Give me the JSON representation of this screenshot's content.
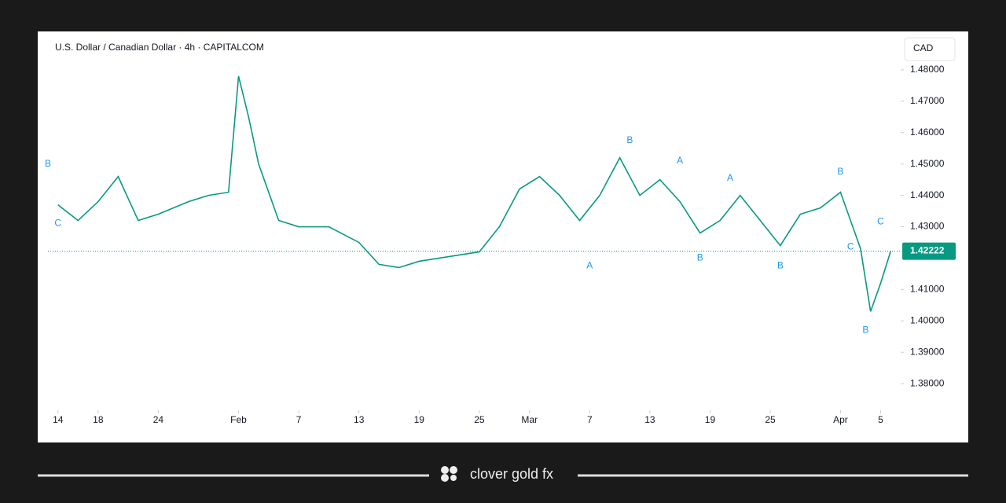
{
  "chart_data": {
    "type": "line",
    "title": "U.S. Dollar / Canadian Dollar · 4h · CAPITALCOM",
    "currency": "CAD",
    "brand": "clover gold fx",
    "xlim": [
      -1,
      84
    ],
    "xticks": [
      {
        "value": 0,
        "label": "14"
      },
      {
        "value": 4,
        "label": "18"
      },
      {
        "value": 10,
        "label": "24"
      },
      {
        "value": 18,
        "label": "Feb"
      },
      {
        "value": 24,
        "label": "7"
      },
      {
        "value": 30,
        "label": "13"
      },
      {
        "value": 36,
        "label": "19"
      },
      {
        "value": 42,
        "label": "25"
      },
      {
        "value": 47,
        "label": "Mar"
      },
      {
        "value": 53,
        "label": "7"
      },
      {
        "value": 59,
        "label": "13"
      },
      {
        "value": 65,
        "label": "19"
      },
      {
        "value": 71,
        "label": "25"
      },
      {
        "value": 78,
        "label": "Apr"
      },
      {
        "value": 82,
        "label": "5"
      }
    ],
    "ylim": [
      1.365,
      1.491
    ],
    "yticks": [
      {
        "value": 1.48,
        "label": "1.48000"
      },
      {
        "value": 1.47,
        "label": "1.47000"
      },
      {
        "value": 1.46,
        "label": "1.46000"
      },
      {
        "value": 1.45,
        "label": "1.45000"
      },
      {
        "value": 1.44,
        "label": "1.44000"
      },
      {
        "value": 1.43,
        "label": "1.43000"
      },
      {
        "value": 1.41,
        "label": "1.41000"
      },
      {
        "value": 1.4,
        "label": "1.40000"
      },
      {
        "value": 1.39,
        "label": "1.39000"
      },
      {
        "value": 1.38,
        "label": "1.38000"
      }
    ],
    "current_price": 1.42222,
    "grid": false,
    "series": [
      {
        "name": "USDCAD",
        "color": "#089981",
        "x": [
          0,
          2,
          4,
          6,
          8,
          10,
          13,
          15,
          17,
          18,
          19,
          20,
          22,
          24,
          27,
          30,
          32,
          34,
          36,
          38,
          40,
          42,
          44,
          46,
          48,
          50,
          52,
          54,
          56,
          58,
          60,
          62,
          64,
          66,
          68,
          70,
          72,
          74,
          76,
          78,
          79,
          80,
          81,
          82,
          83
        ],
        "values": [
          1.437,
          1.432,
          1.438,
          1.446,
          1.432,
          1.434,
          1.438,
          1.44,
          1.441,
          1.478,
          1.465,
          1.45,
          1.432,
          1.43,
          1.43,
          1.425,
          1.418,
          1.417,
          1.419,
          1.42,
          1.421,
          1.422,
          1.43,
          1.442,
          1.446,
          1.44,
          1.432,
          1.44,
          1.452,
          1.44,
          1.445,
          1.438,
          1.428,
          1.432,
          1.44,
          1.432,
          1.424,
          1.434,
          1.436,
          1.441,
          1.432,
          1.423,
          1.403,
          1.412,
          1.42222
        ]
      }
    ],
    "annotations": [
      {
        "text": "B",
        "x": -1,
        "y": 1.45
      },
      {
        "text": "C",
        "x": 0,
        "y": 1.431
      },
      {
        "text": "A",
        "x": 53,
        "y": 1.4175
      },
      {
        "text": "B",
        "x": 57,
        "y": 1.4575
      },
      {
        "text": "A",
        "x": 62,
        "y": 1.451
      },
      {
        "text": "B",
        "x": 64,
        "y": 1.42
      },
      {
        "text": "A",
        "x": 67,
        "y": 1.4455
      },
      {
        "text": "B",
        "x": 72,
        "y": 1.4175
      },
      {
        "text": "B",
        "x": 78,
        "y": 1.4475
      },
      {
        "text": "C",
        "x": 79,
        "y": 1.4235
      },
      {
        "text": "B",
        "x": 80.5,
        "y": 1.397
      },
      {
        "text": "C",
        "x": 82,
        "y": 1.4315
      }
    ]
  }
}
